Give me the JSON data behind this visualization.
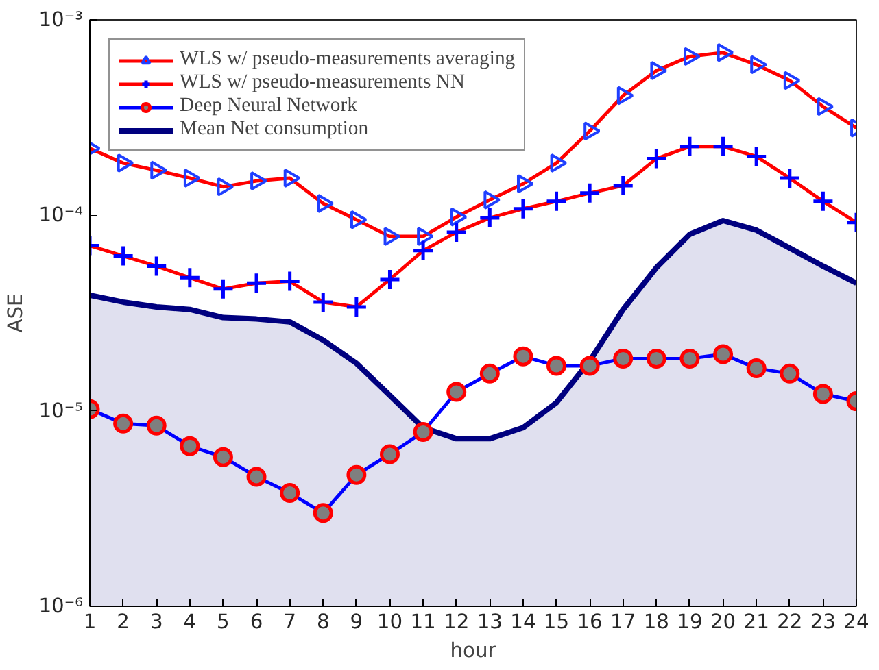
{
  "chart_data": {
    "type": "line",
    "xlabel": "hour",
    "ylabel": "ASE",
    "log": "y",
    "grid": false,
    "legend": "top left",
    "x": [
      1,
      2,
      3,
      4,
      5,
      6,
      7,
      8,
      9,
      10,
      11,
      12,
      13,
      14,
      15,
      16,
      17,
      18,
      19,
      20,
      21,
      22,
      23,
      24
    ],
    "xlim": [
      1,
      24
    ],
    "xticks": [
      1,
      2,
      3,
      4,
      5,
      6,
      7,
      8,
      9,
      10,
      11,
      12,
      13,
      14,
      15,
      16,
      17,
      18,
      19,
      20,
      21,
      22,
      23,
      24
    ],
    "ylim": [
      1e-06,
      0.001
    ],
    "yticks": [
      {
        "value": 1e-06,
        "label": "10⁻⁶"
      },
      {
        "value": 1e-05,
        "label": "10⁻⁵"
      },
      {
        "value": 0.0001,
        "label": "10⁻⁴"
      },
      {
        "value": 0.001,
        "label": "10⁻³"
      }
    ],
    "series": [
      {
        "name": "WLS w/ pseudo-measurements averaging",
        "color": "#ff0000",
        "marker": "triangle",
        "values": [
          0.00022,
          0.000185,
          0.00017,
          0.000155,
          0.00014,
          0.00015,
          0.000155,
          0.000115,
          9.5e-05,
          7.8e-05,
          7.8e-05,
          9.8e-05,
          0.00012,
          0.000145,
          0.000185,
          0.00027,
          0.00041,
          0.00055,
          0.00065,
          0.00068,
          0.00059,
          0.00049,
          0.00036,
          0.00028
        ]
      },
      {
        "name": "WLS w/ pseudo-measurements NN",
        "color": "#ff0000",
        "marker": "cross",
        "values": [
          7e-05,
          6.2e-05,
          5.5e-05,
          4.8e-05,
          4.2e-05,
          4.5e-05,
          4.6e-05,
          3.6e-05,
          3.4e-05,
          4.7e-05,
          6.6e-05,
          8.2e-05,
          9.7e-05,
          0.000108,
          0.000118,
          0.00013,
          0.000142,
          0.000195,
          0.000225,
          0.000225,
          0.0002,
          0.000155,
          0.000118,
          9.2e-05
        ]
      },
      {
        "name": "Deep Neural Network",
        "color": "#0000ff",
        "marker": "circle",
        "values": [
          1.02e-05,
          8.6e-06,
          8.4e-06,
          6.6e-06,
          5.8e-06,
          4.6e-06,
          3.8e-06,
          3e-06,
          4.7e-06,
          6e-06,
          7.8e-06,
          1.25e-05,
          1.55e-05,
          1.9e-05,
          1.7e-05,
          1.7e-05,
          1.85e-05,
          1.85e-05,
          1.85e-05,
          1.95e-05,
          1.65e-05,
          1.55e-05,
          1.22e-05,
          1.12e-05
        ]
      },
      {
        "name": "Mean Net consumption",
        "type": "area",
        "color": "#00007f",
        "marker": "none",
        "values": [
          3.9e-05,
          3.6e-05,
          3.4e-05,
          3.3e-05,
          3e-05,
          2.95e-05,
          2.85e-05,
          2.3e-05,
          1.75e-05,
          1.2e-05,
          8.2e-06,
          7.2e-06,
          7.2e-06,
          8.2e-06,
          1.1e-05,
          1.8e-05,
          3.3e-05,
          5.4e-05,
          8e-05,
          9.4e-05,
          8.4e-05,
          6.8e-05,
          5.5e-05,
          4.5e-05
        ]
      }
    ]
  }
}
